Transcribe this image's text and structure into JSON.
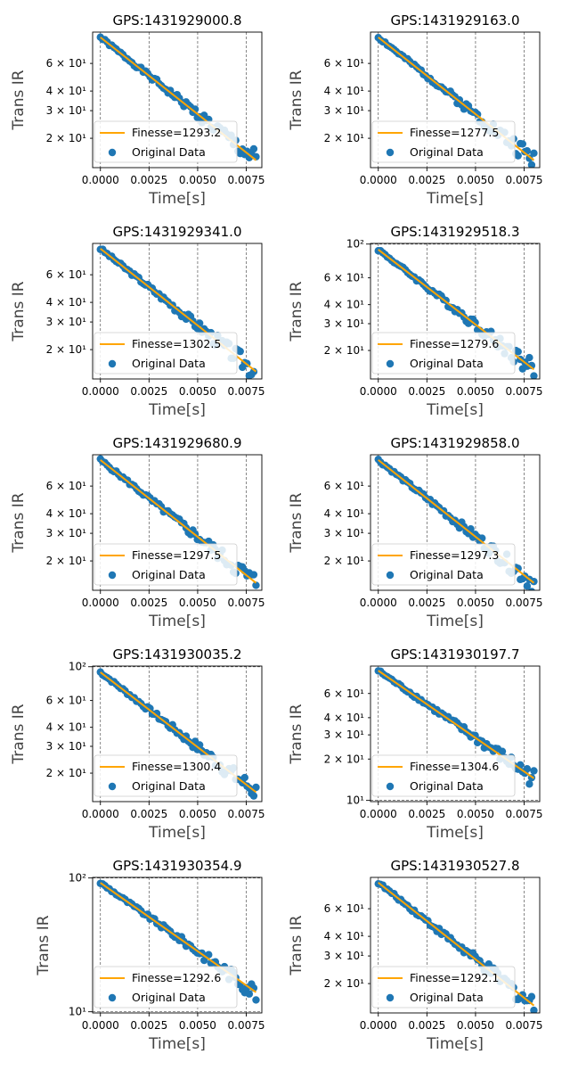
{
  "chart_data": [
    {
      "type": "scatter",
      "title": "GPS:1431929000.8",
      "xlabel": "Time[s]",
      "ylabel": "Trans IR",
      "xlim": [
        -0.0004,
        0.0083
      ],
      "ylim": [
        13.0,
        95.0
      ],
      "y_scale": "log",
      "x_ticks": [
        "0.0000",
        "0.0025",
        "0.0050",
        "0.0075"
      ],
      "y_ticks": [
        {
          "value": 20,
          "label": "2 × 10¹"
        },
        {
          "value": 30,
          "label": "3 × 10¹"
        },
        {
          "value": 40,
          "label": "4 × 10¹"
        },
        {
          "value": 60,
          "label": "6 × 10¹"
        }
      ],
      "legend_position": "lower-left",
      "series": [
        {
          "name": "Finesse=1293.2",
          "kind": "fit-line",
          "color": "#ffa500",
          "x": [
            0.0,
            0.008
          ],
          "y": [
            88.0,
            14.5
          ]
        },
        {
          "name": "Original Data",
          "kind": "scatter",
          "color": "#1f77b4",
          "noise_seed": 1
        }
      ]
    },
    {
      "type": "scatter",
      "title": "GPS:1431929163.0",
      "xlabel": "Time[s]",
      "ylabel": "Trans IR",
      "xlim": [
        -0.0004,
        0.0083
      ],
      "ylim": [
        13.0,
        95.0
      ],
      "y_scale": "log",
      "x_ticks": [
        "0.0000",
        "0.0025",
        "0.0050",
        "0.0075"
      ],
      "y_ticks": [
        {
          "value": 20,
          "label": "2 × 10¹"
        },
        {
          "value": 30,
          "label": "3 × 10¹"
        },
        {
          "value": 40,
          "label": "4 × 10¹"
        },
        {
          "value": 60,
          "label": "6 × 10¹"
        }
      ],
      "legend_position": "lower-left",
      "series": [
        {
          "name": "Finesse=1277.5",
          "kind": "fit-line",
          "color": "#ffa500",
          "x": [
            0.0,
            0.008
          ],
          "y": [
            88.0,
            14.5
          ]
        },
        {
          "name": "Original Data",
          "kind": "scatter",
          "color": "#1f77b4",
          "noise_seed": 2
        }
      ]
    },
    {
      "type": "scatter",
      "title": "GPS:1431929341.0",
      "xlabel": "Time[s]",
      "ylabel": "Trans IR",
      "xlim": [
        -0.0004,
        0.0083
      ],
      "ylim": [
        13.0,
        95.0
      ],
      "y_scale": "log",
      "x_ticks": [
        "0.0000",
        "0.0025",
        "0.0050",
        "0.0075"
      ],
      "y_ticks": [
        {
          "value": 20,
          "label": "2 × 10¹"
        },
        {
          "value": 30,
          "label": "3 × 10¹"
        },
        {
          "value": 40,
          "label": "4 × 10¹"
        },
        {
          "value": 60,
          "label": "6 × 10¹"
        }
      ],
      "legend_position": "lower-left",
      "series": [
        {
          "name": "Finesse=1302.5",
          "kind": "fit-line",
          "color": "#ffa500",
          "x": [
            0.0,
            0.008
          ],
          "y": [
            88.0,
            14.5
          ]
        },
        {
          "name": "Original Data",
          "kind": "scatter",
          "color": "#1f77b4",
          "noise_seed": 3
        }
      ]
    },
    {
      "type": "scatter",
      "title": "GPS:1431929518.3",
      "xlabel": "Time[s]",
      "ylabel": "Trans IR",
      "xlim": [
        -0.0004,
        0.0083
      ],
      "ylim": [
        13.0,
        101.0
      ],
      "y_scale": "log",
      "x_ticks": [
        "0.0000",
        "0.0025",
        "0.0050",
        "0.0075"
      ],
      "y_ticks": [
        {
          "value": 20,
          "label": "2 × 10¹"
        },
        {
          "value": 30,
          "label": "3 × 10¹"
        },
        {
          "value": 40,
          "label": "4 × 10¹"
        },
        {
          "value": 60,
          "label": "6 × 10¹"
        },
        {
          "value": 100,
          "label": "10²"
        }
      ],
      "legend_position": "lower-left",
      "series": [
        {
          "name": "Finesse=1279.6",
          "kind": "fit-line",
          "color": "#ffa500",
          "x": [
            0.0,
            0.008
          ],
          "y": [
            92.0,
            15.0
          ]
        },
        {
          "name": "Original Data",
          "kind": "scatter",
          "color": "#1f77b4",
          "noise_seed": 4
        }
      ]
    },
    {
      "type": "scatter",
      "title": "GPS:1431929680.9",
      "xlabel": "Time[s]",
      "ylabel": "Trans IR",
      "xlim": [
        -0.0004,
        0.0083
      ],
      "ylim": [
        13.0,
        95.0
      ],
      "y_scale": "log",
      "x_ticks": [
        "0.0000",
        "0.0025",
        "0.0050",
        "0.0075"
      ],
      "y_ticks": [
        {
          "value": 20,
          "label": "2 × 10¹"
        },
        {
          "value": 30,
          "label": "3 × 10¹"
        },
        {
          "value": 40,
          "label": "4 × 10¹"
        },
        {
          "value": 60,
          "label": "6 × 10¹"
        }
      ],
      "legend_position": "lower-left",
      "series": [
        {
          "name": "Finesse=1297.5",
          "kind": "fit-line",
          "color": "#ffa500",
          "x": [
            0.0,
            0.008
          ],
          "y": [
            88.0,
            14.5
          ]
        },
        {
          "name": "Original Data",
          "kind": "scatter",
          "color": "#1f77b4",
          "noise_seed": 5
        }
      ]
    },
    {
      "type": "scatter",
      "title": "GPS:1431929858.0",
      "xlabel": "Time[s]",
      "ylabel": "Trans IR",
      "xlim": [
        -0.0004,
        0.0083
      ],
      "ylim": [
        13.0,
        95.0
      ],
      "y_scale": "log",
      "x_ticks": [
        "0.0000",
        "0.0025",
        "0.0050",
        "0.0075"
      ],
      "y_ticks": [
        {
          "value": 20,
          "label": "2 × 10¹"
        },
        {
          "value": 30,
          "label": "3 × 10¹"
        },
        {
          "value": 40,
          "label": "4 × 10¹"
        },
        {
          "value": 60,
          "label": "6 × 10¹"
        }
      ],
      "legend_position": "lower-left",
      "series": [
        {
          "name": "Finesse=1297.3",
          "kind": "fit-line",
          "color": "#ffa500",
          "x": [
            0.0,
            0.008
          ],
          "y": [
            88.0,
            14.5
          ]
        },
        {
          "name": "Original Data",
          "kind": "scatter",
          "color": "#1f77b4",
          "noise_seed": 6
        }
      ]
    },
    {
      "type": "scatter",
      "title": "GPS:1431930035.2",
      "xlabel": "Time[s]",
      "ylabel": "Trans IR",
      "xlim": [
        -0.0004,
        0.0083
      ],
      "ylim": [
        13.0,
        101.0
      ],
      "y_scale": "log",
      "x_ticks": [
        "0.0000",
        "0.0025",
        "0.0050",
        "0.0075"
      ],
      "y_ticks": [
        {
          "value": 20,
          "label": "2 × 10¹"
        },
        {
          "value": 30,
          "label": "3 × 10¹"
        },
        {
          "value": 40,
          "label": "4 × 10¹"
        },
        {
          "value": 60,
          "label": "6 × 10¹"
        },
        {
          "value": 100,
          "label": "10²"
        }
      ],
      "legend_position": "lower-left",
      "series": [
        {
          "name": "Finesse=1300.4",
          "kind": "fit-line",
          "color": "#ffa500",
          "x": [
            0.0,
            0.008
          ],
          "y": [
            92.0,
            15.0
          ]
        },
        {
          "name": "Original Data",
          "kind": "scatter",
          "color": "#1f77b4",
          "noise_seed": 7
        }
      ]
    },
    {
      "type": "scatter",
      "title": "GPS:1431930197.7",
      "xlabel": "Time[s]",
      "ylabel": "Trans IR",
      "xlim": [
        -0.0004,
        0.0083
      ],
      "ylim": [
        9.8,
        95.0
      ],
      "y_scale": "log",
      "x_ticks": [
        "0.0000",
        "0.0025",
        "0.0050",
        "0.0075"
      ],
      "y_ticks": [
        {
          "value": 10,
          "label": "10¹"
        },
        {
          "value": 20,
          "label": "2 × 10¹"
        },
        {
          "value": 30,
          "label": "3 × 10¹"
        },
        {
          "value": 40,
          "label": "4 × 10¹"
        },
        {
          "value": 60,
          "label": "6 × 10¹"
        }
      ],
      "legend_position": "lower-left",
      "series": [
        {
          "name": "Finesse=1304.6",
          "kind": "fit-line",
          "color": "#ffa500",
          "x": [
            0.0,
            0.008
          ],
          "y": [
            88.0,
            14.5
          ]
        },
        {
          "name": "Original Data",
          "kind": "scatter",
          "color": "#1f77b4",
          "noise_seed": 8
        }
      ]
    },
    {
      "type": "scatter",
      "title": "GPS:1431930354.9",
      "xlabel": "Time[s]",
      "ylabel": "Trans IR",
      "xlim": [
        -0.0004,
        0.0083
      ],
      "ylim": [
        9.8,
        101.0
      ],
      "y_scale": "log",
      "x_ticks": [
        "0.0000",
        "0.0025",
        "0.0050",
        "0.0075"
      ],
      "y_ticks": [
        {
          "value": 10,
          "label": "10¹"
        },
        {
          "value": 100,
          "label": "10²"
        }
      ],
      "legend_position": "lower-left",
      "series": [
        {
          "name": "Finesse=1292.6",
          "kind": "fit-line",
          "color": "#ffa500",
          "x": [
            0.0,
            0.008
          ],
          "y": [
            92.0,
            14.0
          ]
        },
        {
          "name": "Original Data",
          "kind": "scatter",
          "color": "#1f77b4",
          "noise_seed": 9
        }
      ]
    },
    {
      "type": "scatter",
      "title": "GPS:1431930527.8",
      "xlabel": "Time[s]",
      "ylabel": "Trans IR",
      "xlim": [
        -0.0004,
        0.0083
      ],
      "ylim": [
        13.0,
        95.0
      ],
      "y_scale": "log",
      "x_ticks": [
        "0.0000",
        "0.0025",
        "0.0050",
        "0.0075"
      ],
      "y_ticks": [
        {
          "value": 20,
          "label": "2 × 10¹"
        },
        {
          "value": 30,
          "label": "3 × 10¹"
        },
        {
          "value": 40,
          "label": "4 × 10¹"
        },
        {
          "value": 60,
          "label": "6 × 10¹"
        }
      ],
      "legend_position": "lower-left",
      "series": [
        {
          "name": "Finesse=1292.1",
          "kind": "fit-line",
          "color": "#ffa500",
          "x": [
            0.0,
            0.008
          ],
          "y": [
            88.0,
            14.5
          ]
        },
        {
          "name": "Original Data",
          "kind": "scatter",
          "color": "#1f77b4",
          "noise_seed": 10
        }
      ]
    }
  ]
}
